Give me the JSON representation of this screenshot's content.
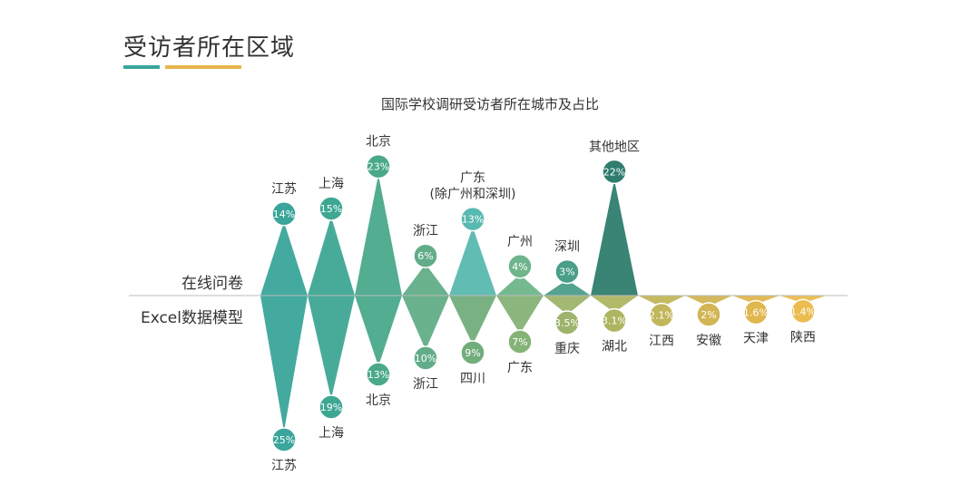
{
  "header": {
    "title": "受访者所在区域"
  },
  "rows": {
    "top_label": "在线问卷",
    "bottom_label": "Excel数据模型"
  },
  "chart_data": {
    "type": "bar",
    "title": "国际学校调研受访者所在城市及占比",
    "series": [
      {
        "name": "在线问卷",
        "categories": [
          "江苏",
          "上海",
          "北京",
          "浙江",
          "广东\n(除广州和深圳)",
          "广州",
          "深圳",
          "其他地区"
        ],
        "values": [
          14,
          15,
          23,
          6,
          13,
          4,
          3,
          22
        ],
        "labels": [
          "14%",
          "15%",
          "23%",
          "6%",
          "13%",
          "4%",
          "3%",
          "22%"
        ]
      },
      {
        "name": "Excel数据模型",
        "categories": [
          "江苏",
          "上海",
          "北京",
          "浙江",
          "四川",
          "广东",
          "重庆",
          "湖北",
          "江西",
          "安徽",
          "天津",
          "陕西"
        ],
        "values": [
          25,
          19,
          13,
          10,
          9,
          7,
          3.5,
          3.1,
          2.1,
          2,
          1.6,
          1.4
        ],
        "labels": [
          "25%",
          "19%",
          "13%",
          "10%",
          "9%",
          "7%",
          "3.5%",
          "3.1%",
          "2.1%",
          "2%",
          "1.6%",
          "1.4%"
        ]
      }
    ],
    "colors": {
      "top": [
        "#3aa59a",
        "#3ea793",
        "#4aa98a",
        "#62ad88",
        "#58b9b0",
        "#6fb58b",
        "#4a9e8a",
        "#2f7d6e"
      ],
      "bottom": [
        "#3aa59a",
        "#3ea793",
        "#4aa98a",
        "#62ad88",
        "#72ad7c",
        "#85b276",
        "#9db46c",
        "#aeb561",
        "#c2b65a",
        "#d2b554",
        "#e0b64e",
        "#ebbd4f"
      ],
      "baseline": "#bbbbbb"
    }
  }
}
